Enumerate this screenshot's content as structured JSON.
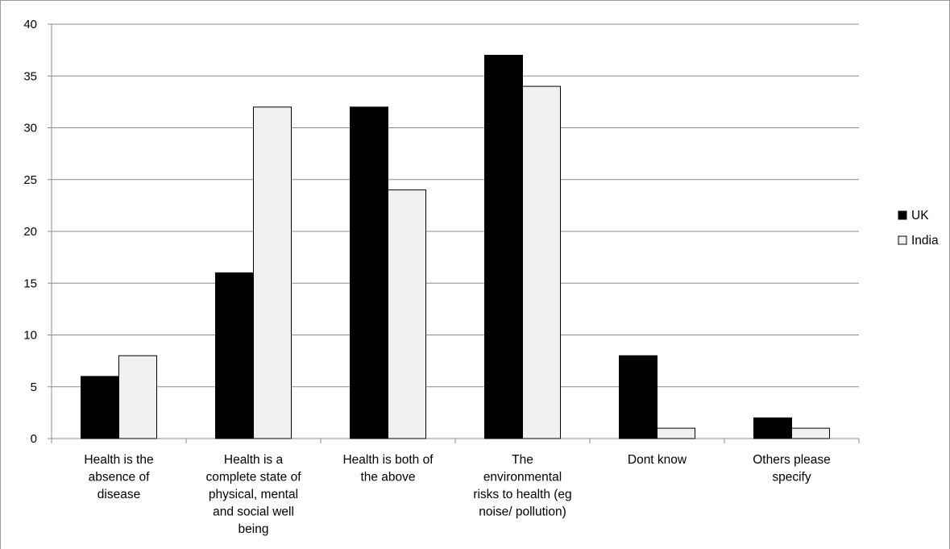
{
  "chart_data": {
    "type": "bar",
    "title": "",
    "xlabel": "",
    "ylabel": "",
    "ylim": [
      0,
      40
    ],
    "yticks": [
      0,
      5,
      10,
      15,
      20,
      25,
      30,
      35,
      40
    ],
    "grid": true,
    "legend_position": "right",
    "categories": [
      [
        "Health is the",
        "absence of",
        "disease"
      ],
      [
        "Health is a",
        "complete state of",
        "physical, mental",
        "and social well",
        "being"
      ],
      [
        "Health is both of",
        "the above"
      ],
      [
        "The",
        "environmental",
        "risks to health (eg",
        "noise/ pollution)"
      ],
      [
        "Dont know"
      ],
      [
        "Others please",
        "specify"
      ]
    ],
    "series": [
      {
        "name": "UK",
        "color": "#000000",
        "values": [
          6,
          16,
          32,
          37,
          8,
          2
        ]
      },
      {
        "name": "India",
        "color": "#f0f0f0",
        "values": [
          8,
          32,
          24,
          34,
          1,
          1
        ]
      }
    ]
  }
}
